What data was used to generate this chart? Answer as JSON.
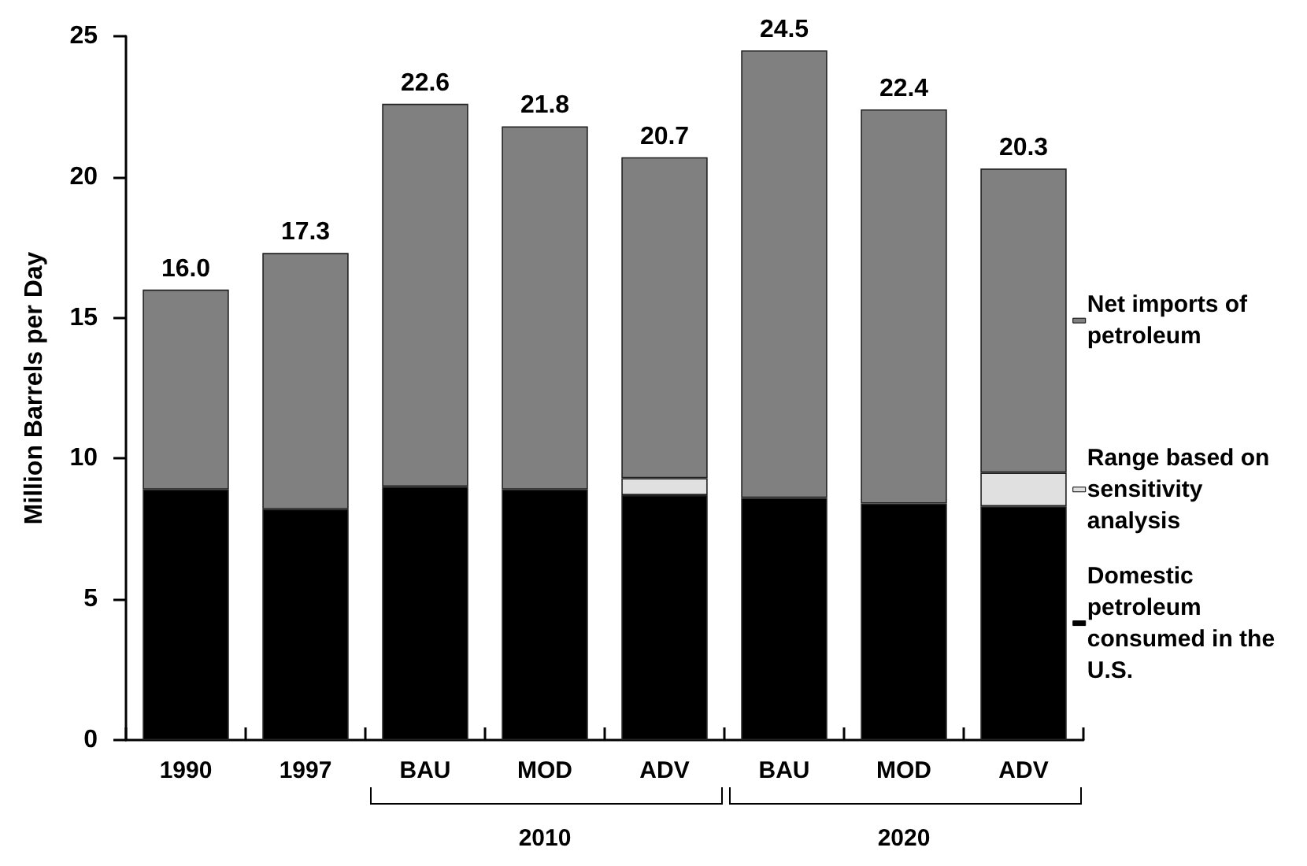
{
  "chart_data": {
    "type": "bar",
    "stacked": true,
    "ylabel": "Million Barrels per Day",
    "categories": [
      "1990",
      "1997",
      "BAU",
      "MOD",
      "ADV",
      "BAU",
      "MOD",
      "ADV"
    ],
    "series": [
      {
        "name": "Domestic petroleum consumed in the U.S.",
        "color": "#000000",
        "values": [
          8.9,
          8.2,
          9.0,
          8.9,
          8.7,
          8.6,
          8.4,
          8.3
        ]
      },
      {
        "name": "Range based on sensitivity analysis",
        "color": "#e0e0e0",
        "values": [
          null,
          null,
          null,
          null,
          0.6,
          null,
          null,
          1.2
        ]
      },
      {
        "name": "Net imports of petroleum",
        "color": "#808080",
        "values": [
          7.1,
          9.1,
          13.6,
          12.9,
          11.4,
          15.9,
          14.0,
          10.8
        ]
      }
    ],
    "totals": [
      "16.0",
      "17.3",
      "22.6",
      "21.8",
      "20.7",
      "24.5",
      "22.4",
      "20.3"
    ],
    "annotations": [
      "2010",
      "2020"
    ],
    "ylim": [
      0,
      25
    ],
    "yticks": [
      0,
      5,
      10,
      15,
      20,
      25
    ],
    "grid": false,
    "legend": "right"
  }
}
